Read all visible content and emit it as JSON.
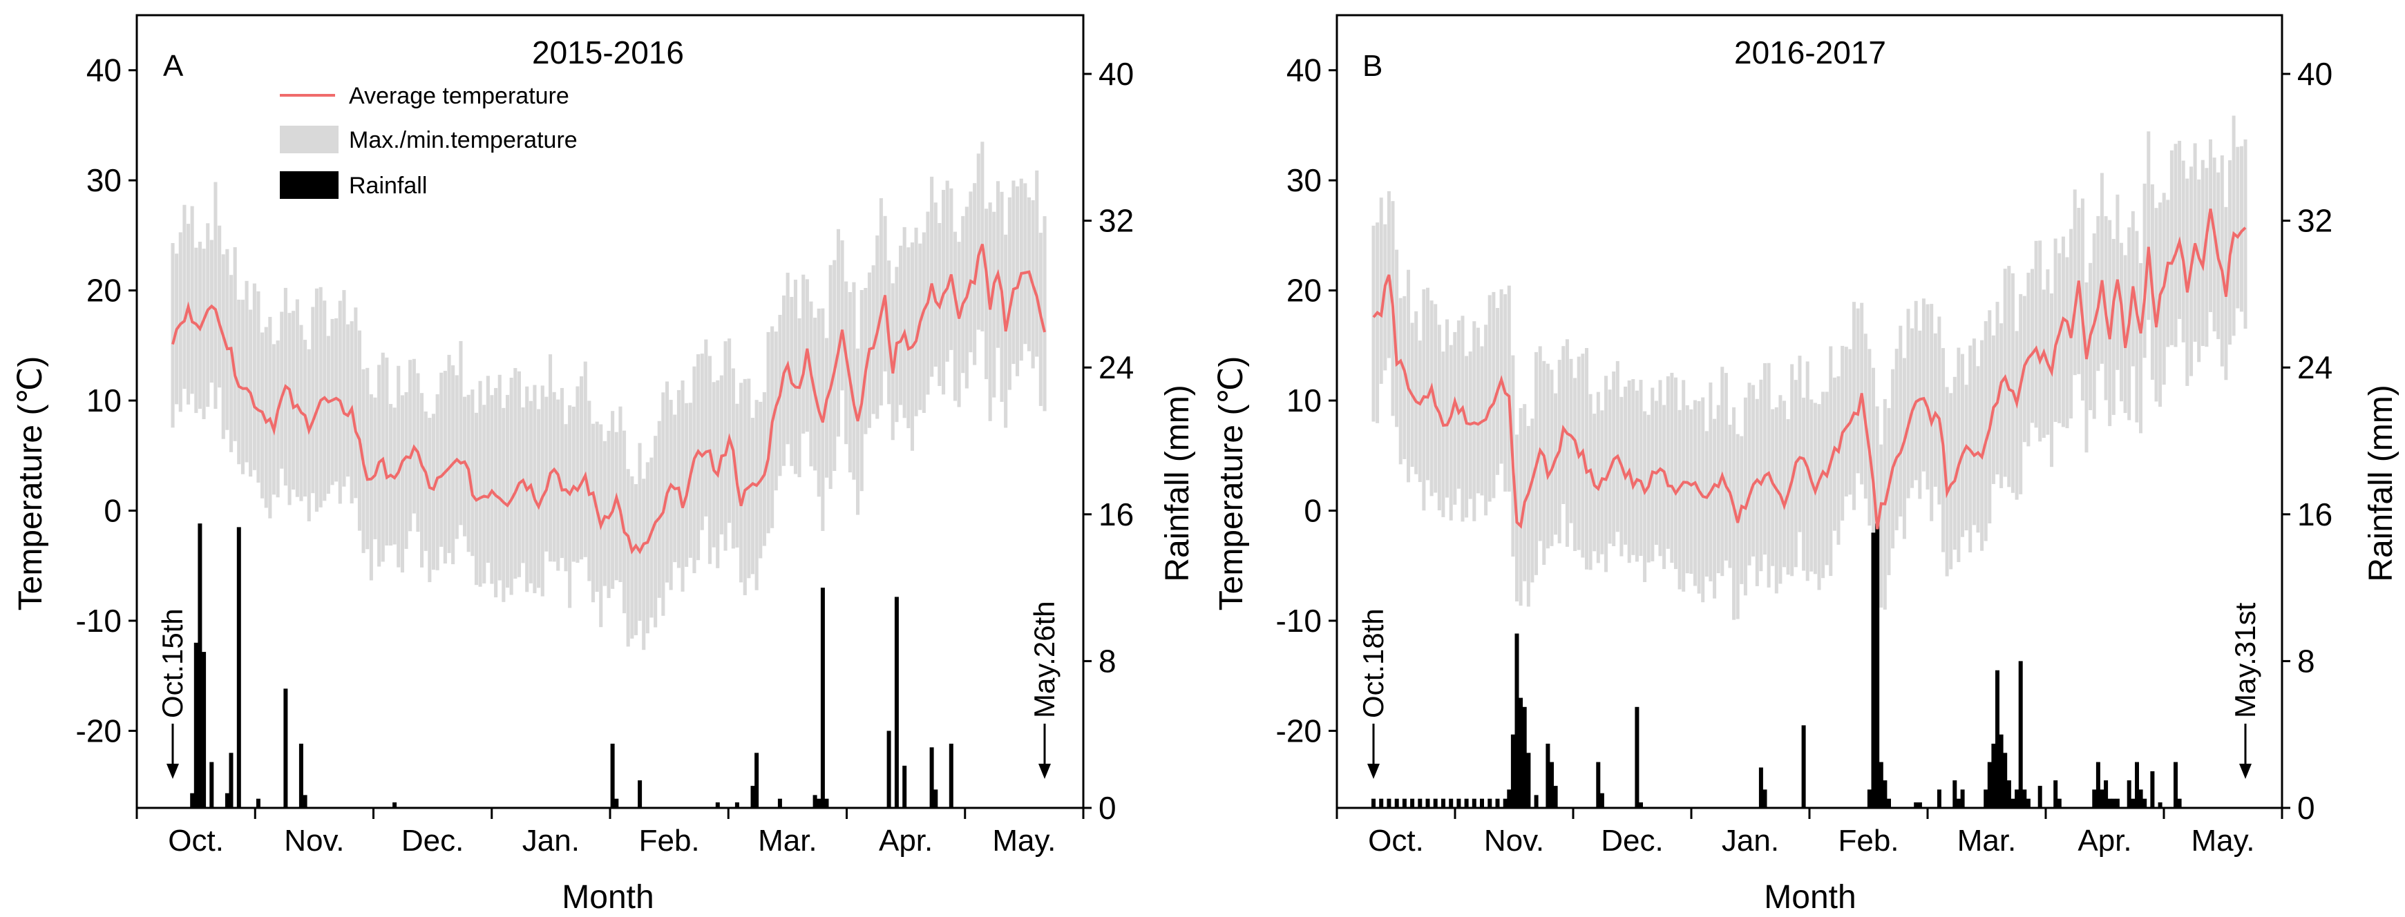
{
  "chart_data": [
    {
      "panel_label": "A",
      "title": "2015-2016",
      "type": "line+range+bar",
      "xlabel": "Month",
      "ylabel_left": "Temperature (℃)",
      "ylabel_right": "Rainfall (mm)",
      "ylim_left": [
        -27,
        45
      ],
      "yticks_left": [
        "40",
        "30",
        "20",
        "10",
        "0",
        "-10",
        "-20"
      ],
      "ylim_right": [
        0,
        43.2
      ],
      "yticks_right": [
        "40",
        "32",
        "24",
        "16",
        "8",
        "0"
      ],
      "month_labels": [
        "Oct.",
        "Nov.",
        "Dec.",
        "Jan.",
        "Feb.",
        "Mar.",
        "Apr.",
        "May."
      ],
      "num_days": 225,
      "legend": {
        "avg": "Average temperature",
        "range": "Max./min.temperature",
        "rain": "Rainfall"
      },
      "annotations": [
        {
          "text": "Oct.15th",
          "day": 0
        },
        {
          "text": "May.26th",
          "day": 224
        }
      ],
      "colors": {
        "avg": "#f06b6b",
        "range": "#d9d9d9",
        "rain": "#000000"
      },
      "avg_temperature_points": [
        [
          0,
          15.5
        ],
        [
          4,
          18
        ],
        [
          8,
          17
        ],
        [
          11,
          19
        ],
        [
          14,
          15
        ],
        [
          17,
          12
        ],
        [
          20,
          10.5
        ],
        [
          23,
          9
        ],
        [
          26,
          8
        ],
        [
          29,
          11
        ],
        [
          32,
          9
        ],
        [
          35,
          8
        ],
        [
          38,
          10
        ],
        [
          42,
          9.5
        ],
        [
          46,
          9
        ],
        [
          50,
          3
        ],
        [
          54,
          4
        ],
        [
          58,
          3
        ],
        [
          62,
          6
        ],
        [
          66,
          2
        ],
        [
          70,
          3
        ],
        [
          74,
          5
        ],
        [
          78,
          1
        ],
        [
          82,
          2
        ],
        [
          86,
          1
        ],
        [
          90,
          3
        ],
        [
          94,
          1
        ],
        [
          98,
          4
        ],
        [
          102,
          1
        ],
        [
          106,
          3
        ],
        [
          110,
          -1
        ],
        [
          114,
          1
        ],
        [
          118,
          -4
        ],
        [
          122,
          -3
        ],
        [
          125,
          -1
        ],
        [
          128,
          2
        ],
        [
          131,
          1
        ],
        [
          134,
          4
        ],
        [
          137,
          6
        ],
        [
          140,
          3
        ],
        [
          143,
          7
        ],
        [
          146,
          1
        ],
        [
          149,
          2
        ],
        [
          152,
          3
        ],
        [
          155,
          10
        ],
        [
          158,
          13
        ],
        [
          161,
          11
        ],
        [
          163,
          15
        ],
        [
          165,
          10
        ],
        [
          167,
          8
        ],
        [
          170,
          13
        ],
        [
          172,
          17
        ],
        [
          174,
          12
        ],
        [
          176,
          8
        ],
        [
          178,
          13
        ],
        [
          180,
          15
        ],
        [
          183,
          19
        ],
        [
          185,
          13
        ],
        [
          187,
          16
        ],
        [
          190,
          15
        ],
        [
          192,
          17
        ],
        [
          195,
          20
        ],
        [
          197,
          19
        ],
        [
          200,
          21
        ],
        [
          202,
          17
        ],
        [
          204,
          20
        ],
        [
          206,
          21
        ],
        [
          208,
          24
        ],
        [
          210,
          18
        ],
        [
          212,
          22
        ],
        [
          214,
          17
        ],
        [
          216,
          20
        ],
        [
          218,
          21
        ],
        [
          220,
          22
        ],
        [
          222,
          20
        ],
        [
          224,
          16
        ]
      ],
      "temp_range_band": {
        "min_offset": -6,
        "max_offset": 6
      },
      "rainfall": [
        [
          5,
          0.8
        ],
        [
          6,
          9
        ],
        [
          7,
          15.5
        ],
        [
          8,
          8.5
        ],
        [
          10,
          2.5
        ],
        [
          14,
          0.8
        ],
        [
          15,
          3
        ],
        [
          17,
          15.3
        ],
        [
          22,
          0.5
        ],
        [
          29,
          6.5
        ],
        [
          33,
          3.5
        ],
        [
          34,
          0.7
        ],
        [
          57,
          0.3
        ],
        [
          113,
          3.5
        ],
        [
          114,
          0.5
        ],
        [
          120,
          1.5
        ],
        [
          140,
          0.3
        ],
        [
          145,
          0.3
        ],
        [
          149,
          1.2
        ],
        [
          150,
          3
        ],
        [
          156,
          0.5
        ],
        [
          165,
          0.7
        ],
        [
          166,
          0.5
        ],
        [
          167,
          12
        ],
        [
          168,
          0.5
        ],
        [
          184,
          4.2
        ],
        [
          186,
          11.5
        ],
        [
          188,
          2.3
        ],
        [
          195,
          3.3
        ],
        [
          196,
          1
        ],
        [
          200,
          3.5
        ]
      ]
    },
    {
      "panel_label": "B",
      "title": "2016-2017",
      "type": "line+range+bar",
      "xlabel": "Month",
      "ylabel_left": "Temperature (℃)",
      "ylabel_right": "Rainfall (mm)",
      "ylim_left": [
        -27,
        45
      ],
      "yticks_left": [
        "40",
        "30",
        "20",
        "10",
        "0",
        "-10",
        "-20"
      ],
      "ylim_right": [
        0,
        43.2
      ],
      "yticks_right": [
        "40",
        "32",
        "24",
        "16",
        "8",
        "0"
      ],
      "month_labels": [
        "Oct.",
        "Nov.",
        "Dec.",
        "Jan.",
        "Feb.",
        "Mar.",
        "Apr.",
        "May."
      ],
      "num_days": 226,
      "legend": null,
      "annotations": [
        {
          "text": "Oct.18th",
          "day": 0
        },
        {
          "text": "May.31st",
          "day": 225
        }
      ],
      "colors": {
        "avg": "#f06b6b",
        "range": "#d9d9d9",
        "rain": "#000000"
      },
      "avg_temperature_points": [
        [
          0,
          17
        ],
        [
          2,
          18
        ],
        [
          4,
          21.5
        ],
        [
          6,
          14
        ],
        [
          9,
          11
        ],
        [
          12,
          9
        ],
        [
          15,
          11
        ],
        [
          18,
          7
        ],
        [
          21,
          10
        ],
        [
          24,
          8
        ],
        [
          27,
          8
        ],
        [
          30,
          9
        ],
        [
          33,
          11.5
        ],
        [
          35,
          11
        ],
        [
          37,
          -1.5
        ],
        [
          40,
          1
        ],
        [
          43,
          5
        ],
        [
          46,
          3
        ],
        [
          49,
          7
        ],
        [
          52,
          6
        ],
        [
          55,
          4
        ],
        [
          58,
          2
        ],
        [
          62,
          5
        ],
        [
          66,
          3
        ],
        [
          70,
          2
        ],
        [
          74,
          4
        ],
        [
          78,
          2
        ],
        [
          82,
          3
        ],
        [
          86,
          1
        ],
        [
          90,
          3
        ],
        [
          94,
          -1
        ],
        [
          98,
          2
        ],
        [
          102,
          3
        ],
        [
          106,
          1
        ],
        [
          110,
          5
        ],
        [
          114,
          2
        ],
        [
          118,
          4
        ],
        [
          122,
          8
        ],
        [
          126,
          10
        ],
        [
          128,
          5
        ],
        [
          130,
          -1
        ],
        [
          133,
          2
        ],
        [
          136,
          6
        ],
        [
          139,
          9
        ],
        [
          142,
          10
        ],
        [
          144,
          8
        ],
        [
          146,
          9
        ],
        [
          148,
          2
        ],
        [
          151,
          4
        ],
        [
          154,
          6
        ],
        [
          157,
          5
        ],
        [
          160,
          9
        ],
        [
          163,
          12
        ],
        [
          166,
          10
        ],
        [
          169,
          14
        ],
        [
          172,
          14
        ],
        [
          175,
          13
        ],
        [
          178,
          17
        ],
        [
          180,
          16
        ],
        [
          182,
          21
        ],
        [
          184,
          14
        ],
        [
          186,
          17
        ],
        [
          188,
          21
        ],
        [
          190,
          16
        ],
        [
          192,
          21
        ],
        [
          194,
          15
        ],
        [
          196,
          20
        ],
        [
          198,
          16
        ],
        [
          200,
          24
        ],
        [
          202,
          17
        ],
        [
          204,
          21
        ],
        [
          206,
          23
        ],
        [
          208,
          25
        ],
        [
          210,
          20
        ],
        [
          212,
          24
        ],
        [
          214,
          22
        ],
        [
          216,
          27
        ],
        [
          218,
          23
        ],
        [
          220,
          20
        ],
        [
          222,
          25
        ]
      ],
      "temp_range_band": {
        "min_offset": -6,
        "max_offset": 6
      },
      "rainfall": [
        [
          0,
          0.5
        ],
        [
          2,
          0.5
        ],
        [
          4,
          0.5
        ],
        [
          6,
          0.5
        ],
        [
          8,
          0.5
        ],
        [
          10,
          0.5
        ],
        [
          12,
          0.5
        ],
        [
          14,
          0.5
        ],
        [
          16,
          0.5
        ],
        [
          18,
          0.5
        ],
        [
          20,
          0.5
        ],
        [
          22,
          0.5
        ],
        [
          24,
          0.5
        ],
        [
          26,
          0.5
        ],
        [
          28,
          0.5
        ],
        [
          30,
          0.5
        ],
        [
          32,
          0.5
        ],
        [
          34,
          0.5
        ],
        [
          35,
          1
        ],
        [
          36,
          4
        ],
        [
          37,
          9.5
        ],
        [
          38,
          6
        ],
        [
          39,
          5.5
        ],
        [
          40,
          3
        ],
        [
          42,
          0.7
        ],
        [
          45,
          3.5
        ],
        [
          46,
          2.5
        ],
        [
          47,
          1.2
        ],
        [
          58,
          2.5
        ],
        [
          59,
          0.8
        ],
        [
          68,
          5.5
        ],
        [
          69,
          0.3
        ],
        [
          100,
          2.2
        ],
        [
          101,
          1
        ],
        [
          111,
          4.5
        ],
        [
          128,
          1
        ],
        [
          129,
          15
        ],
        [
          130,
          15.5
        ],
        [
          131,
          2.5
        ],
        [
          132,
          1.5
        ],
        [
          133,
          0.5
        ],
        [
          140,
          0.3
        ],
        [
          141,
          0.3
        ],
        [
          146,
          1
        ],
        [
          150,
          1.5
        ],
        [
          151,
          0.5
        ],
        [
          152,
          1
        ],
        [
          158,
          1
        ],
        [
          159,
          2.5
        ],
        [
          160,
          3.5
        ],
        [
          161,
          7.5
        ],
        [
          162,
          4
        ],
        [
          163,
          3
        ],
        [
          164,
          1.5
        ],
        [
          165,
          0.5
        ],
        [
          166,
          1
        ],
        [
          167,
          8
        ],
        [
          168,
          1
        ],
        [
          169,
          0.5
        ],
        [
          172,
          1.2
        ],
        [
          176,
          1.5
        ],
        [
          177,
          0.5
        ],
        [
          186,
          1
        ],
        [
          187,
          2.5
        ],
        [
          188,
          1
        ],
        [
          189,
          1.5
        ],
        [
          190,
          0.5
        ],
        [
          191,
          0.5
        ],
        [
          192,
          0.5
        ],
        [
          195,
          1.5
        ],
        [
          196,
          0.5
        ],
        [
          197,
          2.5
        ],
        [
          198,
          1
        ],
        [
          199,
          0.5
        ],
        [
          201,
          2
        ],
        [
          203,
          0.3
        ],
        [
          207,
          2.5
        ],
        [
          208,
          0.5
        ]
      ]
    }
  ]
}
